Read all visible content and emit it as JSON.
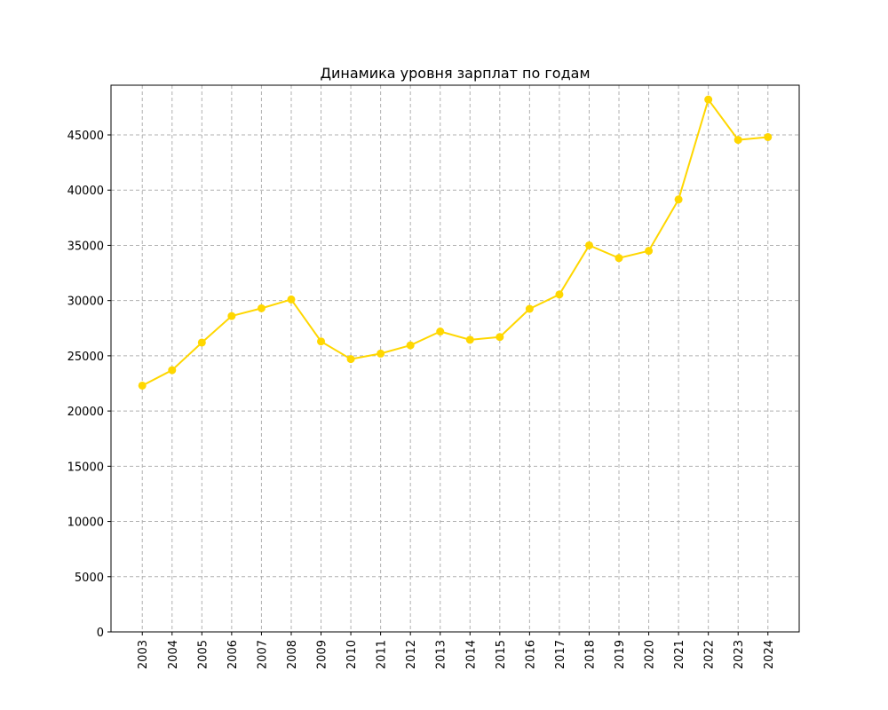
{
  "chart_data": {
    "type": "line",
    "title": "Динамика уровня зарплат по годам",
    "xlabel": "",
    "ylabel": "",
    "x": [
      "2003",
      "2004",
      "2005",
      "2006",
      "2007",
      "2008",
      "2009",
      "2010",
      "2011",
      "2012",
      "2013",
      "2014",
      "2015",
      "2016",
      "2017",
      "2018",
      "2019",
      "2020",
      "2021",
      "2022",
      "2023",
      "2024"
    ],
    "series": [
      {
        "name": "",
        "color": "#FFD700",
        "marker": "circle",
        "values": [
          22300,
          23700,
          26200,
          28600,
          29300,
          30100,
          26300,
          24700,
          25200,
          25950,
          27200,
          26450,
          26700,
          29250,
          30550,
          35000,
          33850,
          34500,
          39150,
          48200,
          44550,
          44800
        ]
      }
    ],
    "ylim": [
      0,
      49500
    ],
    "yticks": [
      0,
      5000,
      10000,
      15000,
      20000,
      25000,
      30000,
      35000,
      40000,
      45000
    ],
    "ytick_labels": [
      "0",
      "5000",
      "10000",
      "15000",
      "20000",
      "25000",
      "30000",
      "35000",
      "40000",
      "45000"
    ],
    "xtick_rotation": "vertical",
    "grid": true,
    "grid_style": "dashed",
    "grid_color": "#b0b0b0",
    "legend": "none"
  }
}
